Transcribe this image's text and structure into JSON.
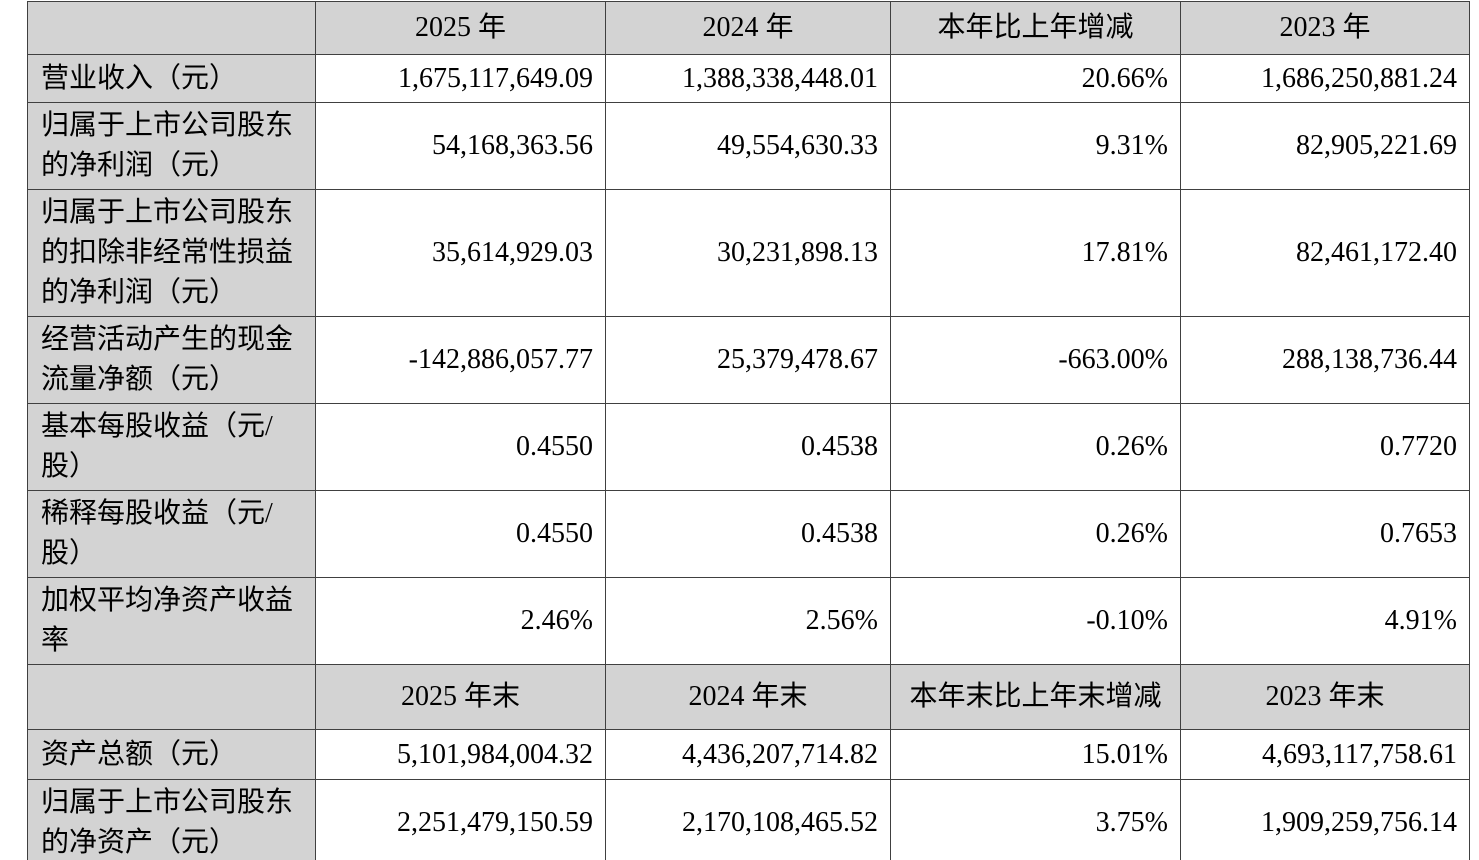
{
  "table": {
    "colors": {
      "header_bg": "#d3d3d3",
      "label_col_bg": "#d3d3d3",
      "data_bg": "#ffffff",
      "border": "#404040",
      "text": "#000000"
    },
    "section_annual": {
      "header": {
        "blank": "",
        "col_2025": "2025 年",
        "col_2024": "2024 年",
        "col_change": "本年比上年增减",
        "col_2023": "2023 年"
      },
      "rows": [
        {
          "label": "营业收入（元）",
          "values": [
            "1,675,117,649.09",
            "1,388,338,448.01",
            "20.66%",
            "1,686,250,881.24"
          ]
        },
        {
          "label": "归属于上市公司股东的净利润（元）",
          "values": [
            "54,168,363.56",
            "49,554,630.33",
            "9.31%",
            "82,905,221.69"
          ]
        },
        {
          "label": "归属于上市公司股东的扣除非经常性损益的净利润（元）",
          "values": [
            "35,614,929.03",
            "30,231,898.13",
            "17.81%",
            "82,461,172.40"
          ]
        },
        {
          "label": "经营活动产生的现金流量净额（元）",
          "values": [
            "-142,886,057.77",
            "25,379,478.67",
            "-663.00%",
            "288,138,736.44"
          ]
        },
        {
          "label": "基本每股收益（元/股）",
          "values": [
            "0.4550",
            "0.4538",
            "0.26%",
            "0.7720"
          ]
        },
        {
          "label": "稀释每股收益（元/股）",
          "values": [
            "0.4550",
            "0.4538",
            "0.26%",
            "0.7653"
          ]
        },
        {
          "label": "加权平均净资产收益率",
          "values": [
            "2.46%",
            "2.56%",
            "-0.10%",
            "4.91%"
          ]
        }
      ]
    },
    "section_period_end": {
      "header": {
        "blank": "",
        "col_2025": "2025 年末",
        "col_2024": "2024 年末",
        "col_change": "本年末比上年末增减",
        "col_2023": "2023 年末"
      },
      "rows": [
        {
          "label": "资产总额（元）",
          "values": [
            "5,101,984,004.32",
            "4,436,207,714.82",
            "15.01%",
            "4,693,117,758.61"
          ]
        },
        {
          "label": "归属于上市公司股东的净资产（元）",
          "values": [
            "2,251,479,150.59",
            "2,170,108,465.52",
            "3.75%",
            "1,909,259,756.14"
          ]
        }
      ]
    }
  }
}
